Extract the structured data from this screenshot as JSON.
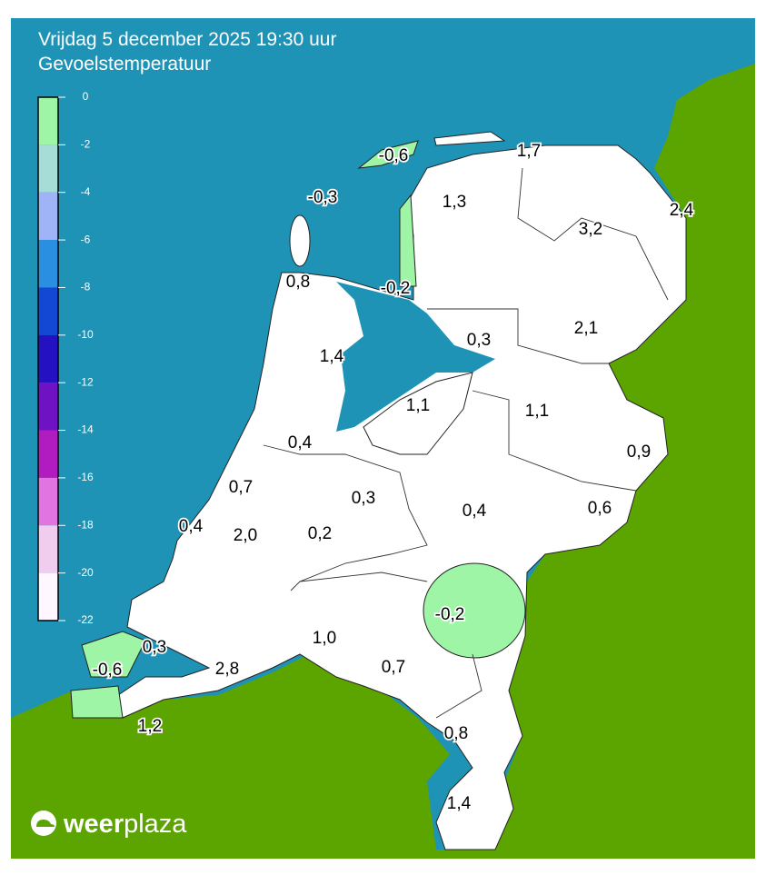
{
  "header": {
    "title": "Vrijdag 5 december 2025 19:30 uur",
    "subtitle": "Gevoelstemperatuur"
  },
  "legend": {
    "ticks": [
      0,
      -2,
      -4,
      -6,
      -8,
      -10,
      -12,
      -14,
      -16,
      -18,
      -20,
      -22
    ],
    "colors": [
      "#9ff5a6",
      "#a6ddd6",
      "#9fb4f6",
      "#2a8fe0",
      "#1248d4",
      "#2412c2",
      "#6e12c4",
      "#b01cc0",
      "#e274e2",
      "#f0cdee",
      "#fff7ff"
    ]
  },
  "map": {
    "labels": [
      "-0,6",
      "-0,3",
      "1,7",
      "1,3",
      "2,4",
      "3,2",
      "0,8",
      "-0,2",
      "2,1",
      "0,3",
      "1,4",
      "1,1",
      "1,1",
      "0,4",
      "0,9",
      "0,7",
      "0,3",
      "0,4",
      "0,6",
      "0,4",
      "2,0",
      "0,2",
      "-0,2",
      "1,0",
      "0,3",
      "0,7",
      "-0,6",
      "2,8",
      "0,8",
      "1,2",
      "1,4"
    ]
  },
  "logo": {
    "parts": [
      "weer",
      "plaza"
    ]
  }
}
